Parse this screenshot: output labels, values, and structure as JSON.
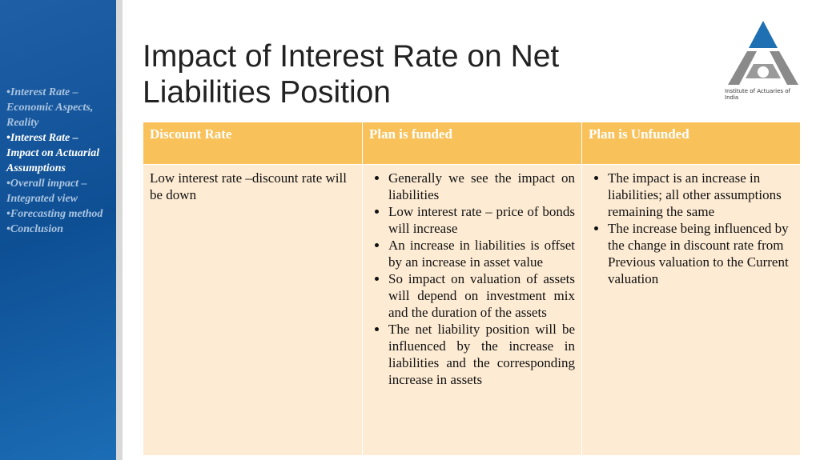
{
  "sidebar": {
    "items": [
      "Interest Rate – Economic Aspects, Reality",
      "Interest Rate – Impact on Actuarial Assumptions",
      "Overall impact – Integrated view",
      "Forecasting method",
      "Conclusion"
    ]
  },
  "header": {
    "title": "Impact of Interest Rate on Net Liabilities Position",
    "logo_text": "Institute of Actuaries of India"
  },
  "table": {
    "header": [
      "Discount Rate",
      "Plan is funded",
      "Plan is Unfunded"
    ],
    "rows": [
      [
        "Low interest rate –discount rate will be down",
        [
          "Generally we see the impact on liabilities",
          "Low interest rate – price of bonds will increase",
          "An increase in liabilities is offset by an increase in asset value",
          "So impact on valuation of assets will depend on investment mix and the duration of the assets",
          "The net liability position will be influenced by the increase in liabilities and the corresponding increase in assets"
        ],
        [
          "The impact is an increase in liabilities; all other assumptions remaining the same",
          "The increase being influenced by the change in discount rate from Previous valuation to the Current valuation"
        ]
      ]
    ]
  }
}
